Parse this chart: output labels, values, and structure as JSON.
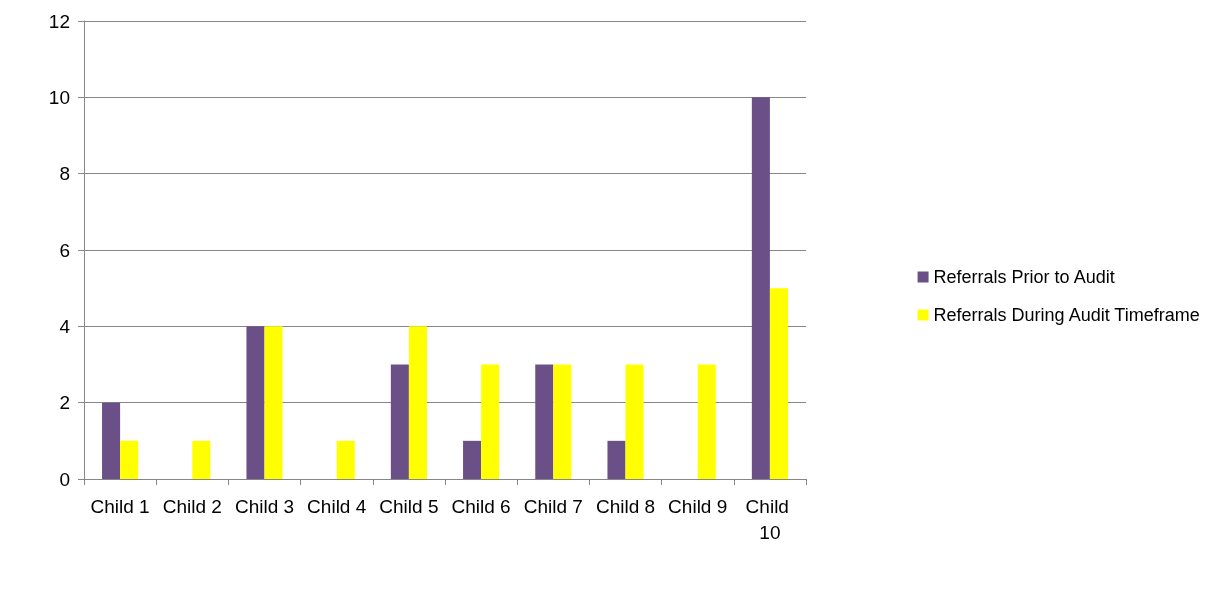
{
  "chart_data": {
    "type": "bar",
    "categories": [
      "Child 1",
      "Child 2",
      "Child 3",
      "Child 4",
      "Child 5",
      "Child 6",
      "Child 7",
      "Child 8",
      "Child 9",
      "Child 10"
    ],
    "series": [
      {
        "name": "Referrals Prior to Audit",
        "color": "#6b5088",
        "values": [
          2,
          0,
          4,
          0,
          3,
          1,
          3,
          1,
          0,
          10
        ]
      },
      {
        "name": "Referrals During Audit Timeframe",
        "color": "#ffff00",
        "values": [
          1,
          1,
          4,
          1,
          4,
          3,
          3,
          3,
          3,
          5
        ]
      }
    ],
    "ylim": [
      0,
      12
    ],
    "yticks": [
      0,
      2,
      4,
      6,
      8,
      10,
      12
    ],
    "grid": "y",
    "legend": "right"
  }
}
